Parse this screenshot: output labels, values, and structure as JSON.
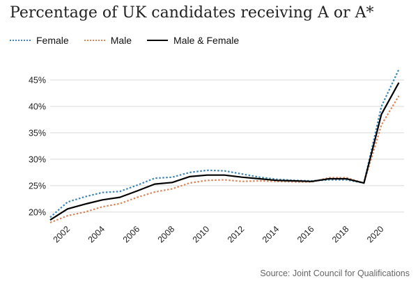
{
  "chart_data": {
    "type": "line",
    "title": "Percentage of UK candidates receiving A or A*",
    "source": "Source: Joint Council for Qualifications",
    "x": [
      2001,
      2002,
      2003,
      2004,
      2005,
      2006,
      2007,
      2008,
      2009,
      2010,
      2011,
      2012,
      2013,
      2014,
      2015,
      2016,
      2017,
      2018,
      2019,
      2020,
      2021
    ],
    "x_ticks": [
      2002,
      2004,
      2006,
      2008,
      2010,
      2012,
      2014,
      2016,
      2018,
      2020
    ],
    "y_ticks": [
      20,
      25,
      30,
      35,
      40,
      45
    ],
    "y_tick_labels": [
      "20%",
      "25%",
      "30%",
      "35%",
      "40%",
      "45%"
    ],
    "ylim": [
      18,
      47.5
    ],
    "xlim": [
      2001,
      2021.3
    ],
    "grid": true,
    "legend_position": "top-left",
    "series": [
      {
        "name": "Female",
        "color": "#3b86b4",
        "style": "dotted",
        "values": [
          19.0,
          21.9,
          22.9,
          23.7,
          23.9,
          25.1,
          26.4,
          26.6,
          27.5,
          27.9,
          27.8,
          27.2,
          26.6,
          26.2,
          26.0,
          25.9,
          26.1,
          26.1,
          25.5,
          40.0,
          47.0
        ]
      },
      {
        "name": "Male",
        "color": "#d9865b",
        "style": "dotted",
        "values": [
          18.0,
          19.3,
          20.0,
          21.0,
          21.6,
          22.8,
          23.8,
          24.4,
          25.5,
          26.0,
          26.1,
          25.8,
          25.9,
          25.8,
          25.7,
          25.7,
          26.5,
          26.5,
          25.5,
          36.5,
          42.0
        ]
      },
      {
        "name": "Male & Female",
        "color": "#000000",
        "style": "solid",
        "values": [
          18.5,
          20.6,
          21.5,
          22.3,
          22.8,
          24.0,
          25.3,
          25.6,
          26.7,
          27.0,
          27.0,
          26.6,
          26.3,
          26.0,
          25.9,
          25.8,
          26.3,
          26.3,
          25.5,
          38.5,
          44.5
        ]
      }
    ]
  }
}
